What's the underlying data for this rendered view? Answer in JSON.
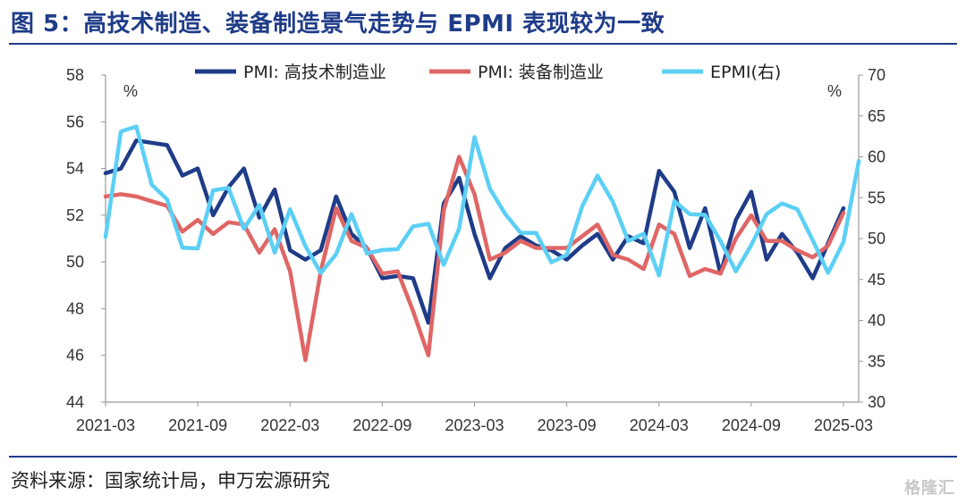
{
  "title": "图 5：高技术制造、装备制造景气走势与 EPMI 表现较为一致",
  "source": "资料来源：国家统计局，申万宏源研究",
  "watermark": "格隆汇",
  "chart_data": {
    "type": "line",
    "x_tick_labels": [
      "2021-03",
      "2021-09",
      "2022-03",
      "2022-09",
      "2023-03",
      "2023-09",
      "2024-03",
      "2024-09",
      "2025-03"
    ],
    "left_axis": {
      "unit": "%",
      "ylim": [
        44,
        58
      ],
      "ticks": [
        44,
        46,
        48,
        50,
        52,
        54,
        56,
        58
      ]
    },
    "right_axis": {
      "unit": "%",
      "ylim": [
        30,
        70
      ],
      "ticks": [
        30,
        35,
        40,
        45,
        50,
        55,
        60,
        65,
        70
      ]
    },
    "legend_position": "top",
    "grid": false,
    "series": [
      {
        "name": "PMI: 高技术制造业",
        "axis": "left",
        "color": "#1f3c88",
        "values": [
          53.8,
          54.0,
          55.2,
          55.1,
          55.0,
          53.7,
          54.0,
          52.0,
          53.2,
          54.0,
          51.9,
          53.1,
          50.5,
          50.1,
          50.5,
          52.8,
          51.2,
          50.6,
          49.3,
          49.4,
          49.3,
          47.4,
          52.5,
          53.6,
          51.2,
          49.3,
          50.6,
          51.1,
          50.7,
          50.5,
          50.1,
          50.7,
          51.2,
          50.1,
          51.1,
          50.8,
          53.9,
          53.0,
          50.6,
          52.3,
          49.5,
          51.8,
          53.0,
          50.1,
          51.2,
          50.4,
          49.3,
          50.8,
          52.3
        ]
      },
      {
        "name": "PMI: 装备制造业",
        "axis": "left",
        "color": "#e06666",
        "values": [
          52.8,
          52.9,
          52.8,
          52.6,
          52.4,
          51.3,
          51.8,
          51.2,
          51.7,
          51.6,
          50.4,
          51.4,
          49.6,
          45.8,
          49.6,
          52.3,
          50.9,
          50.6,
          49.5,
          49.6,
          47.9,
          46.0,
          52.2,
          54.5,
          52.9,
          50.1,
          50.4,
          50.9,
          50.6,
          50.6,
          50.6,
          51.1,
          51.6,
          50.3,
          50.1,
          49.7,
          51.6,
          51.2,
          49.4,
          49.7,
          49.5,
          51.0,
          52.0,
          50.9,
          50.9,
          50.5,
          50.2,
          50.7,
          52.1
        ]
      },
      {
        "name": "EPMI(右)",
        "axis": "right",
        "color": "#5ccff5",
        "values": [
          50.2,
          63.1,
          63.7,
          56.6,
          54.8,
          48.9,
          48.8,
          55.9,
          56.2,
          51.2,
          54.1,
          48.3,
          53.6,
          49.1,
          45.8,
          48.1,
          53.0,
          48.2,
          48.6,
          48.7,
          51.5,
          51.8,
          46.8,
          51.2,
          62.4,
          56.1,
          53.0,
          50.7,
          50.7,
          47.1,
          48.0,
          53.9,
          57.7,
          54.5,
          49.7,
          50.6,
          45.5,
          54.6,
          53.0,
          52.9,
          49.7,
          46.0,
          49.2,
          53.0,
          54.3,
          53.6,
          49.8,
          45.8,
          49.6,
          59.5
        ]
      }
    ]
  }
}
